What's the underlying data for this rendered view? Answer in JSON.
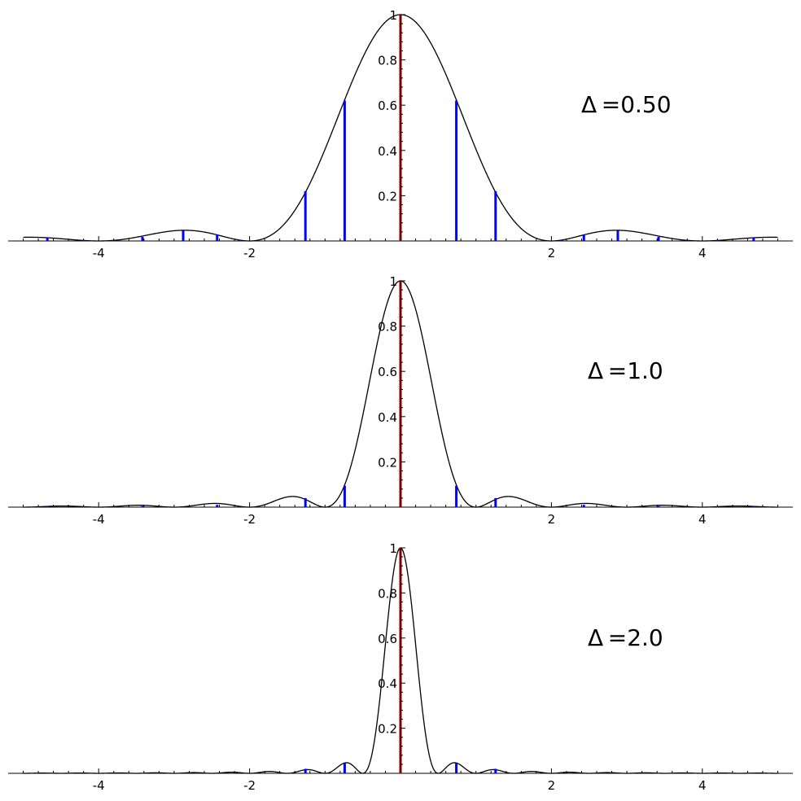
{
  "chart_data": [
    {
      "type": "line",
      "function": "squared sinc with sampled stems",
      "annotation": "Δ =0.50",
      "delta": 0.5,
      "xlim": [
        -5,
        5
      ],
      "ylim": [
        0,
        1
      ],
      "xticks": [
        "-4",
        "-2",
        "2",
        "4"
      ],
      "xtick_values": [
        -4,
        -2,
        2,
        4
      ],
      "yticks": [
        "0.2",
        "0.4",
        "0.6",
        "0.8",
        "1"
      ],
      "ytick_values": [
        0.2,
        0.4,
        0.6,
        0.8,
        1
      ],
      "stems": {
        "x": [
          -4.68,
          -4.2,
          -3.72,
          -3.42,
          -2.88,
          -2.43,
          -2.13,
          -1.88,
          -1.26,
          -0.74,
          0.74,
          1.26,
          1.88,
          2.13,
          2.43,
          2.88,
          3.42,
          3.72,
          4.2,
          4.68
        ],
        "y": [
          0.015,
          0.003,
          0.003,
          0.018,
          0.045,
          0.028,
          0.004,
          0.002,
          0.22,
          0.62,
          0.62,
          0.22,
          0.002,
          0.004,
          0.028,
          0.045,
          0.018,
          0.003,
          0.003,
          0.015
        ]
      },
      "grid": false
    },
    {
      "type": "line",
      "function": "squared sinc with sampled stems",
      "annotation": "Δ =1.0",
      "delta": 1.0,
      "xlim": [
        -5,
        5
      ],
      "ylim": [
        0,
        1
      ],
      "xticks": [
        "-4",
        "-2",
        "2",
        "4"
      ],
      "xtick_values": [
        -4,
        -2,
        2,
        4
      ],
      "yticks": [
        "0.2",
        "0.4",
        "0.6",
        "0.8",
        "1"
      ],
      "ytick_values": [
        0.2,
        0.4,
        0.6,
        0.8,
        1
      ],
      "stems": {
        "x": [
          -4.68,
          -4.2,
          -3.72,
          -3.42,
          -2.43,
          -1.88,
          -1.26,
          -0.74,
          0.74,
          1.26,
          1.88,
          2.43,
          3.42,
          3.72,
          4.2,
          4.68
        ],
        "y": [
          0.003,
          0.002,
          0.002,
          0.005,
          0.01,
          0.002,
          0.04,
          0.095,
          0.095,
          0.04,
          0.002,
          0.01,
          0.005,
          0.002,
          0.002,
          0.003
        ]
      },
      "grid": false
    },
    {
      "type": "line",
      "function": "squared sinc with sampled stems",
      "annotation": "Δ =2.0",
      "delta": 2.0,
      "xlim": [
        -5,
        5
      ],
      "ylim": [
        0,
        1
      ],
      "xticks": [
        "-4",
        "-2",
        "2",
        "4"
      ],
      "xtick_values": [
        -4,
        -2,
        2,
        4
      ],
      "yticks": [
        "0.2",
        "0.4",
        "0.6",
        "0.8",
        "1"
      ],
      "ytick_values": [
        0.2,
        0.4,
        0.6,
        0.8,
        1
      ],
      "stems": {
        "x": [
          -1.26,
          -0.74,
          0.74,
          1.26
        ],
        "y": [
          0.02,
          0.045,
          0.045,
          0.02
        ]
      },
      "grid": false
    }
  ],
  "colors": {
    "curve": "#000000",
    "stem": "#0000ff",
    "center_line": "#800000",
    "axis": "#000000"
  }
}
